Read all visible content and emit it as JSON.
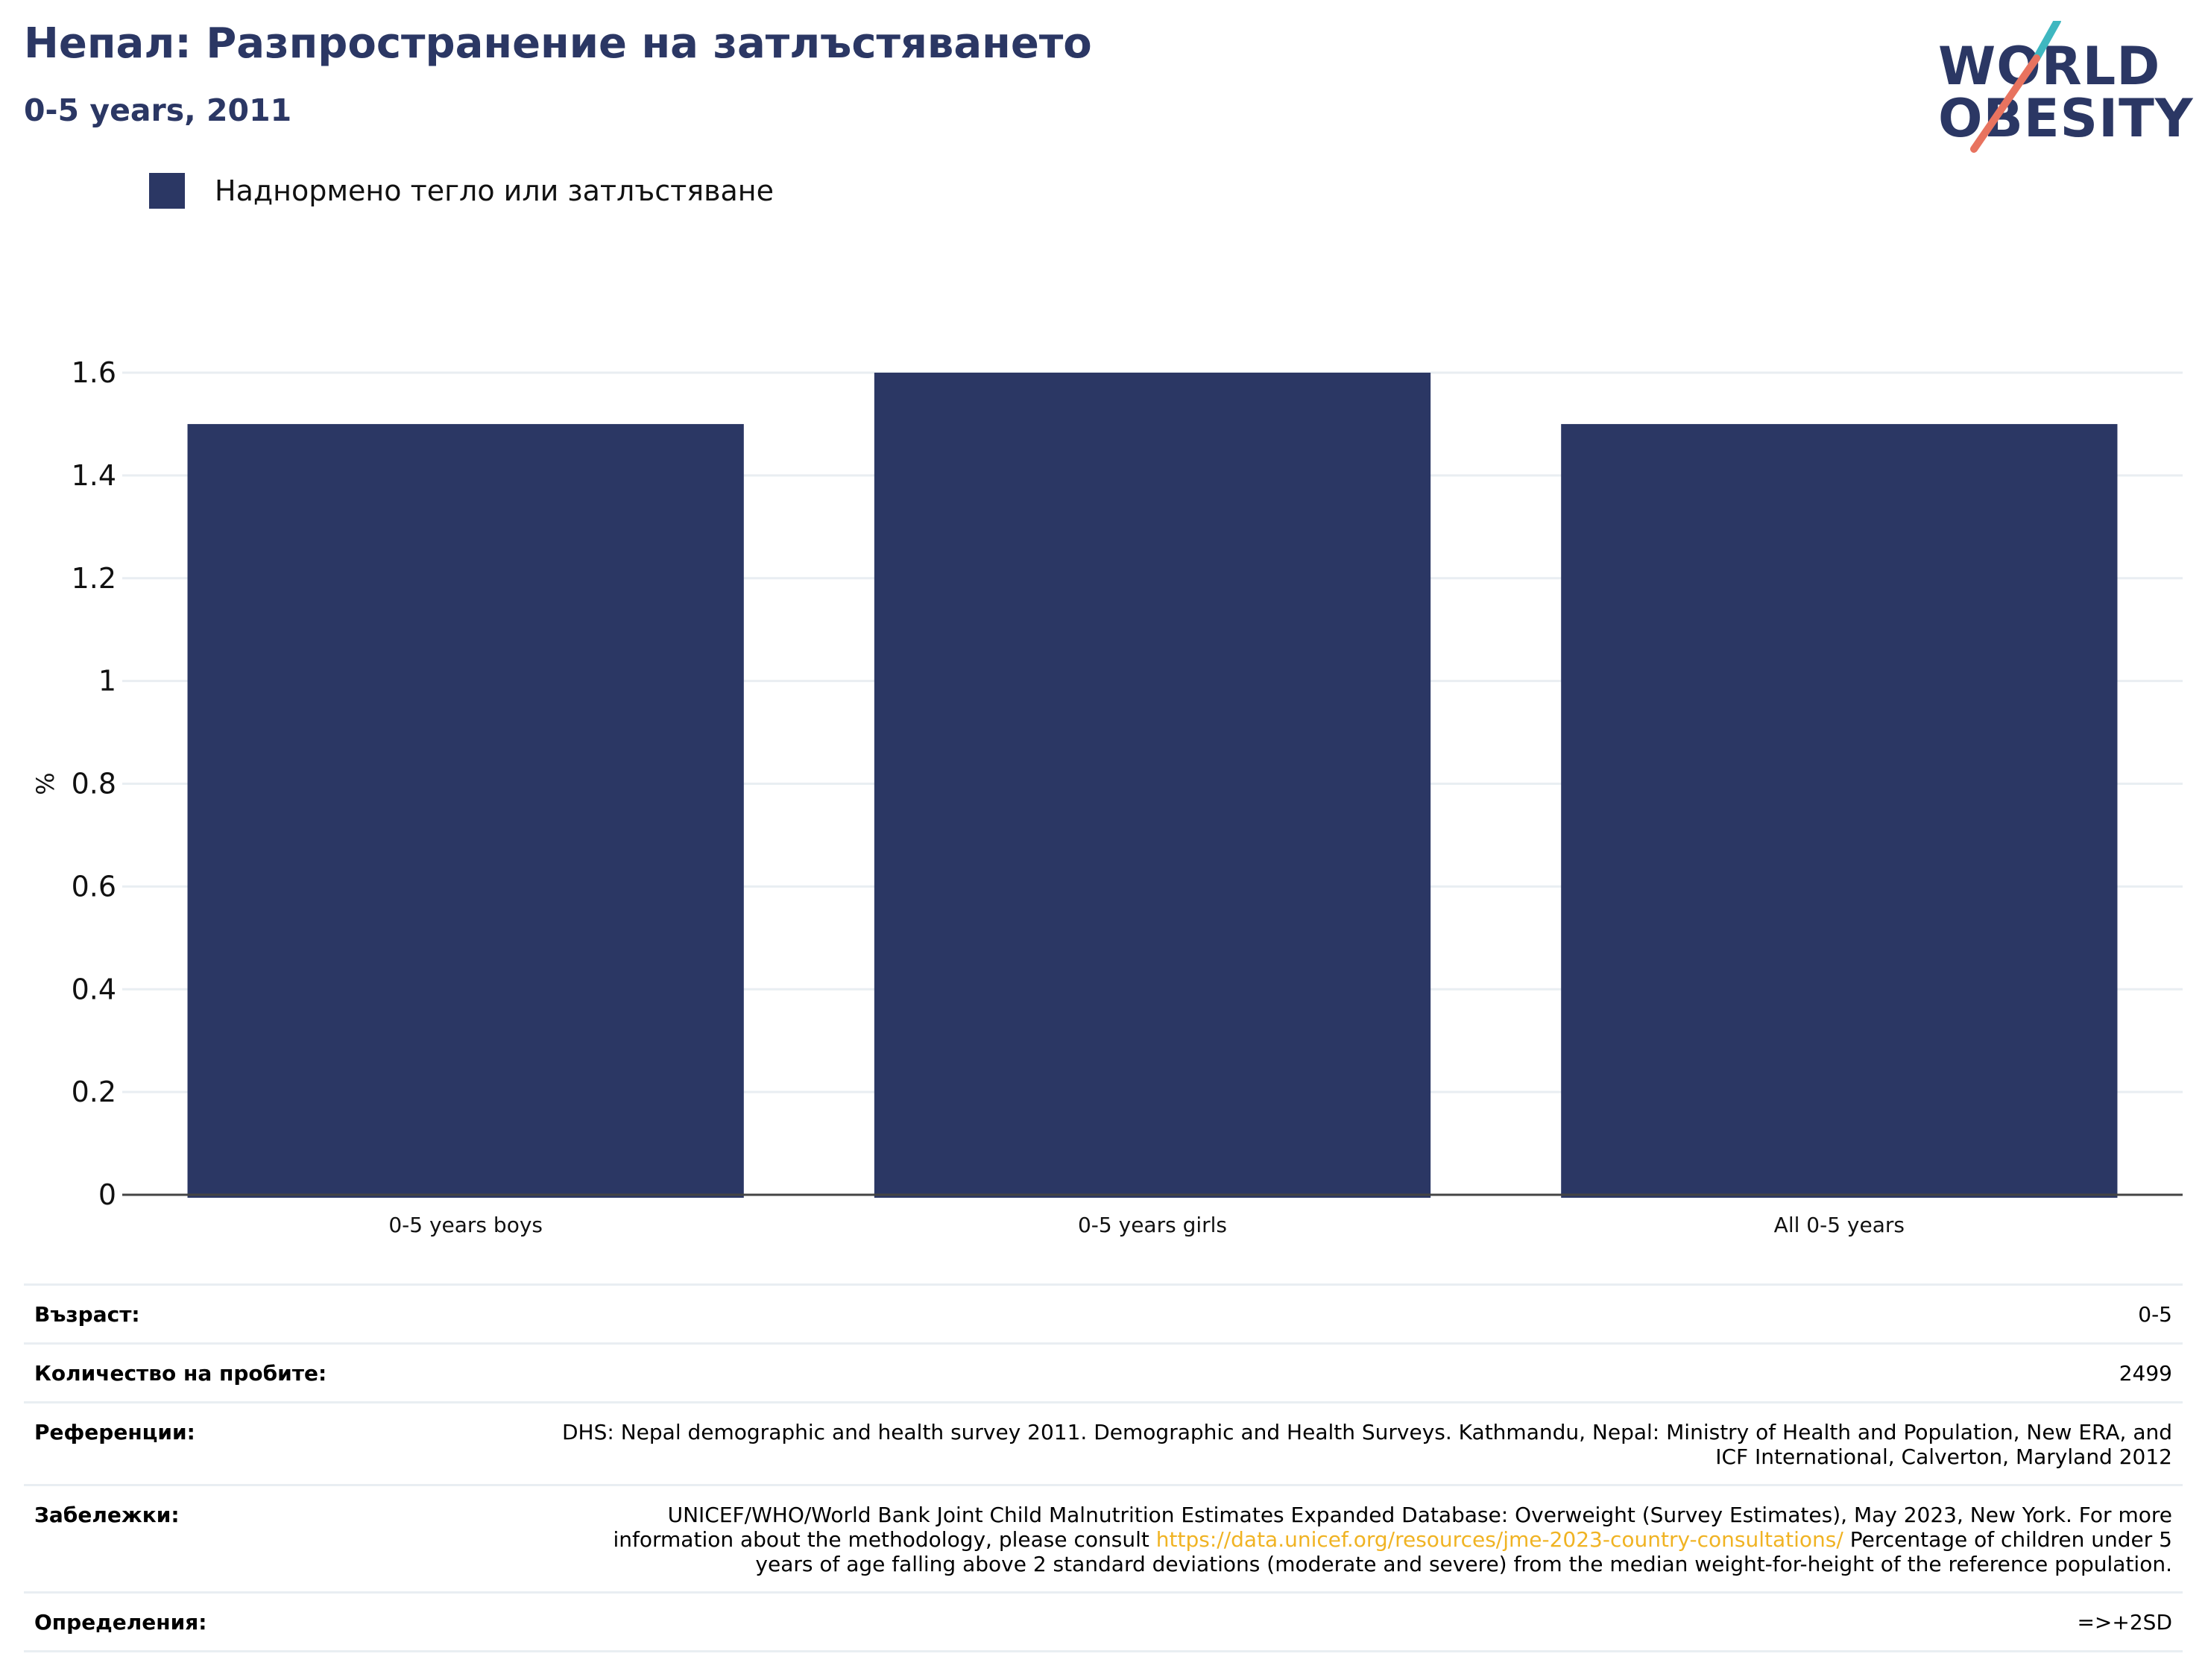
{
  "header": {
    "title": "Непал: Разпространение на затлъстяването",
    "subtitle": "0-5 years, 2011"
  },
  "logo": {
    "line1": "WORLD",
    "line2": "OBESITY",
    "colors": {
      "text": "#2b3764",
      "accent_teal": "#3fb7c0",
      "accent_coral": "#e8735f"
    }
  },
  "legend": {
    "label": "Наднормено тегло или затлъстяване",
    "color": "#2b3764"
  },
  "chart_data": {
    "type": "bar",
    "categories": [
      "0-5 years boys",
      "0-5 years girls",
      "All 0-5 years"
    ],
    "series": [
      {
        "name": "Наднормено тегло или затлъстяване",
        "values": [
          1.5,
          1.6,
          1.5
        ],
        "color": "#2b3764"
      }
    ],
    "ylabel": "%",
    "ylim": [
      0,
      1.6
    ],
    "yticks": [
      "0",
      "0.2",
      "0.4",
      "0.6",
      "0.8",
      "1",
      "1.2",
      "1.4",
      "1.6"
    ],
    "grid": true,
    "legend_position": "top-left"
  },
  "meta": {
    "age": {
      "label": "Възраст:",
      "value": "0-5"
    },
    "sample": {
      "label": "Количество на пробите:",
      "value": "2499"
    },
    "references": {
      "label": "Референции:",
      "value": "DHS: Nepal demographic and health survey 2011. Demographic and Health Surveys. Kathmandu, Nepal: Ministry of Health and Population, New ERA, and ICF International, Calverton, Maryland 2012"
    },
    "notes": {
      "label": "Забележки:",
      "text_before": "UNICEF/WHO/World Bank Joint Child Malnutrition Estimates Expanded Database: Overweight (Survey Estimates), May 2023, New York. For more information about the methodology, please consult ",
      "link": "https://data.unicef.org/resources/jme-2023-country-consultations/",
      "text_after": " Percentage of children under 5 years of age falling above 2 standard deviations (moderate and severe) from the median weight-for-height of the reference population."
    },
    "definitions": {
      "label": "Определения:",
      "value": "=>+2SD"
    }
  }
}
